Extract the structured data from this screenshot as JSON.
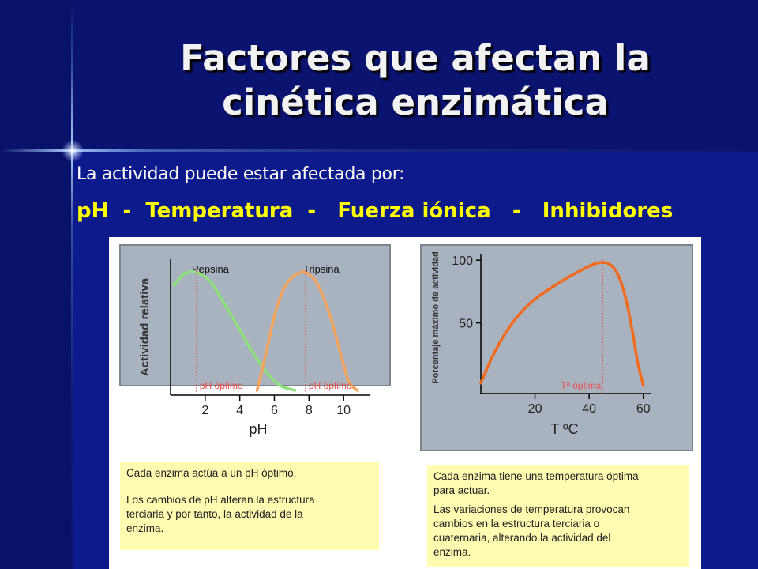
{
  "slide": {
    "title_line1": "Factores que afectan la",
    "title_line2": "cinética enzimática",
    "subtitle": "La actividad puede estar afectada por:",
    "factors": "pH  -  Temperatura  -   Fuerza iónica   -   Inhibidores"
  },
  "colors": {
    "background": "#0c1a8c",
    "title": "#f2f2f2",
    "factors": "#ffff00",
    "chart_bg": "#a9b3bf",
    "note_bg": "#fffbb0",
    "pepsina": "#8ee07a",
    "tripsina": "#f4a45c",
    "temperatura": "#f26a1b",
    "optimum": "#e85050"
  },
  "chart_data": [
    {
      "type": "line",
      "ylabel": "Actividad relativa",
      "xlabel": "pH",
      "x_ticks": [
        2,
        4,
        6,
        8,
        10
      ],
      "xlim": [
        0,
        11.5
      ],
      "ylim": [
        0,
        1
      ],
      "series": [
        {
          "name": "Pepsina",
          "x": [
            0.2,
            0.8,
            1.5,
            2.3,
            3.0,
            3.8,
            4.6,
            5.5,
            6.3,
            7.2
          ],
          "y": [
            0.82,
            0.91,
            0.92,
            0.85,
            0.7,
            0.52,
            0.33,
            0.15,
            0.04,
            0.0
          ]
        },
        {
          "name": "Tripsina",
          "x": [
            5.0,
            5.5,
            6.0,
            6.5,
            7.0,
            7.5,
            7.8,
            8.3,
            8.8,
            9.3,
            9.8,
            10.3,
            10.8
          ],
          "y": [
            0.0,
            0.28,
            0.58,
            0.78,
            0.88,
            0.92,
            0.92,
            0.87,
            0.74,
            0.55,
            0.3,
            0.07,
            0.0
          ]
        }
      ],
      "annotations": [
        {
          "text": "pH óptimo",
          "x": 1.5
        },
        {
          "text": "pH óptimo",
          "x": 7.8
        }
      ]
    },
    {
      "type": "line",
      "ylabel": "Porcentaje máximo de actividad",
      "xlabel": "T ºC",
      "x_ticks": [
        20,
        40,
        60
      ],
      "y_ticks": [
        50,
        100
      ],
      "xlim": [
        0,
        63
      ],
      "ylim": [
        0,
        102
      ],
      "series": [
        {
          "name": "",
          "x": [
            0,
            4,
            8,
            12,
            16,
            20,
            26,
            32,
            38,
            42,
            44,
            46,
            48,
            50,
            52,
            54,
            56,
            58,
            60
          ],
          "y": [
            2,
            22,
            38,
            51,
            61,
            69,
            78,
            86,
            93,
            97,
            98,
            98,
            96,
            91,
            81,
            65,
            43,
            18,
            0
          ]
        }
      ],
      "annotations": [
        {
          "text": "Tª óptima",
          "x": 45
        }
      ]
    }
  ],
  "notes": {
    "ph_line1": "Cada enzima actúa a un pH óptimo.",
    "ph_line2": "Los cambios de pH alteran la estructura",
    "ph_line3": "terciaria y por tanto, la actividad de la",
    "ph_line4": "enzima.",
    "temp_line1": "Cada enzima tiene una temperatura óptima",
    "temp_line2": "para actuar.",
    "temp_line3": "Las variaciones de temperatura provocan",
    "temp_line4": "cambios en la estructura terciaria o",
    "temp_line5": "cuaternaria, alterando la actividad del",
    "temp_line6": "enzima."
  }
}
